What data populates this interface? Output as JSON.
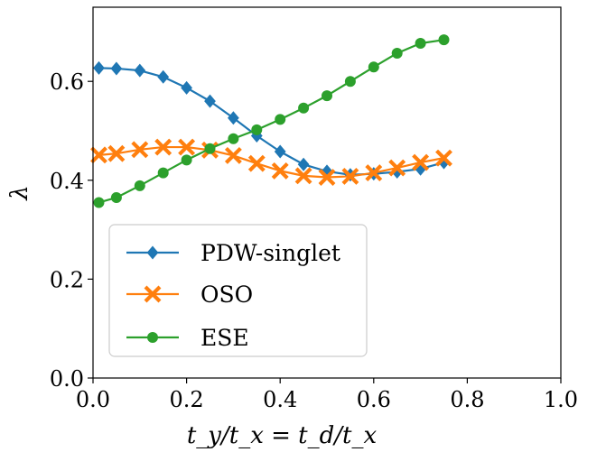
{
  "chart_data": {
    "type": "line",
    "xlabel": "t_y/t_x = t_d/t_x",
    "ylabel": "λ",
    "xlim": [
      0.0,
      1.0
    ],
    "ylim": [
      0.0,
      0.75
    ],
    "xticks": [
      "0.0",
      "0.2",
      "0.4",
      "0.6",
      "0.8",
      "1.0"
    ],
    "yticks": [
      "0.0",
      "0.2",
      "0.4",
      "0.6"
    ],
    "grid": false,
    "legend_position": "lower-left",
    "x": [
      0.0125,
      0.05,
      0.1,
      0.15,
      0.2,
      0.25,
      0.3,
      0.35,
      0.4,
      0.45,
      0.5,
      0.55,
      0.6,
      0.65,
      0.7,
      0.75
    ],
    "series": [
      {
        "name": "PDW-singlet",
        "color": "#1f77b4",
        "marker": "diamond",
        "values": [
          0.627,
          0.626,
          0.622,
          0.609,
          0.587,
          0.56,
          0.526,
          0.49,
          0.458,
          0.432,
          0.418,
          0.411,
          0.413,
          0.417,
          0.423,
          0.436
        ]
      },
      {
        "name": "OSO",
        "color": "#ff7f0e",
        "marker": "x-filled",
        "values": [
          0.451,
          0.454,
          0.462,
          0.467,
          0.467,
          0.461,
          0.45,
          0.434,
          0.419,
          0.409,
          0.406,
          0.408,
          0.415,
          0.425,
          0.436,
          0.445
        ]
      },
      {
        "name": "ESE",
        "color": "#2ca02c",
        "marker": "circle",
        "values": [
          0.355,
          0.365,
          0.389,
          0.415,
          0.441,
          0.464,
          0.484,
          0.502,
          0.523,
          0.546,
          0.571,
          0.6,
          0.629,
          0.657,
          0.677,
          0.684
        ]
      }
    ]
  }
}
